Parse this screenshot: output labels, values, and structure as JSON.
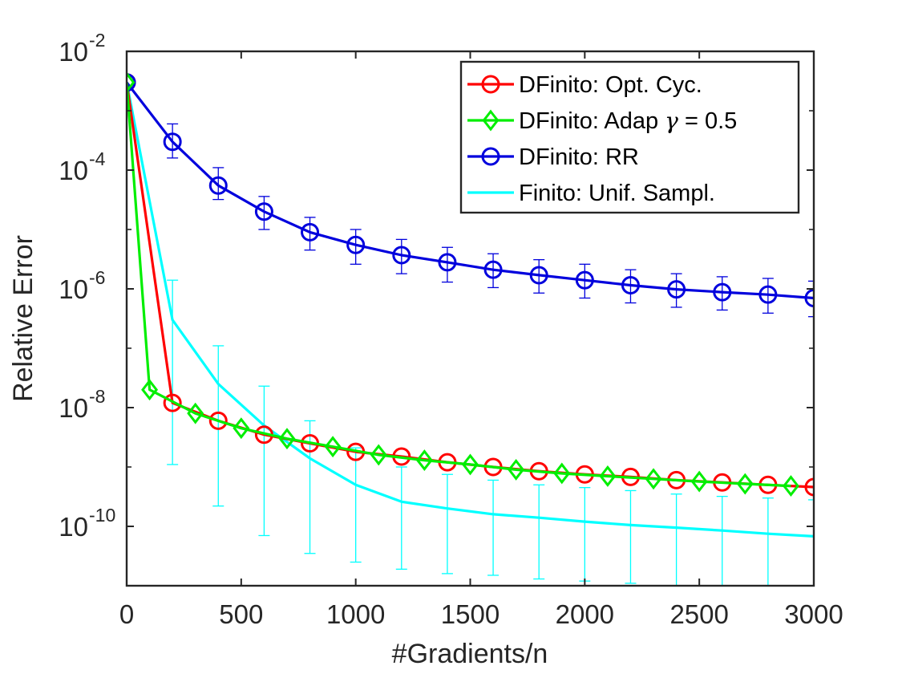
{
  "chart_data": {
    "type": "line",
    "title": "",
    "xlabel": "#Gradients/n",
    "ylabel": "Relative Error",
    "x_scale": "linear",
    "y_scale": "log",
    "xlim": [
      0,
      3000
    ],
    "ylim": [
      1e-11,
      0.01
    ],
    "x_ticks": [
      0,
      500,
      1000,
      1500,
      2000,
      2500,
      3000
    ],
    "x_tick_labels": [
      "0",
      "500",
      "1000",
      "1500",
      "2000",
      "2500",
      "3000"
    ],
    "y_ticks": [
      1e-10,
      1e-08,
      1e-06,
      0.0001,
      0.01
    ],
    "y_tick_labels": [
      {
        "base": "10",
        "exp": "-10"
      },
      {
        "base": "10",
        "exp": "-8"
      },
      {
        "base": "10",
        "exp": "-6"
      },
      {
        "base": "10",
        "exp": "-4"
      },
      {
        "base": "10",
        "exp": "-2"
      }
    ],
    "grid": false,
    "legend_position": "top-right",
    "series": [
      {
        "name": "DFinito: Opt. Cyc.",
        "legend_prefix": "DFinito: Opt. Cyc.",
        "color": "#ff0000",
        "marker": "circle",
        "x": [
          0,
          200,
          400,
          600,
          800,
          1000,
          1200,
          1400,
          1600,
          1800,
          2000,
          2200,
          2400,
          2600,
          2800,
          3000
        ],
        "y": [
          0.003,
          1.2e-08,
          6e-09,
          3.5e-09,
          2.5e-09,
          1.8e-09,
          1.5e-09,
          1.2e-09,
          1e-09,
          8.5e-10,
          7.5e-10,
          6.8e-10,
          6e-10,
          5.5e-10,
          5e-10,
          4.6e-10
        ]
      },
      {
        "name": "DFinito: Adap γ = 0.5",
        "legend_prefix": "DFinito: Adap ",
        "legend_symbol": "γ",
        "legend_suffix": " = 0.5",
        "color": "#00ee00",
        "marker": "diamond",
        "x": [
          0,
          100,
          300,
          500,
          700,
          900,
          1100,
          1300,
          1500,
          1700,
          1900,
          2100,
          2300,
          2500,
          2700,
          2900
        ],
        "y": [
          0.003,
          2e-08,
          8e-09,
          4.5e-09,
          3e-09,
          2.2e-09,
          1.6e-09,
          1.3e-09,
          1.1e-09,
          9e-10,
          7.8e-10,
          7e-10,
          6.3e-10,
          5.7e-10,
          5.2e-10,
          4.8e-10
        ]
      },
      {
        "name": "DFinito: RR",
        "legend_prefix": "DFinito: RR",
        "color": "#0000dd",
        "marker": "circle",
        "x": [
          0,
          200,
          400,
          600,
          800,
          1000,
          1200,
          1400,
          1600,
          1800,
          2000,
          2200,
          2400,
          2600,
          2800,
          3000
        ],
        "y": [
          0.003,
          0.0003,
          5.5e-05,
          2e-05,
          9e-06,
          5.5e-06,
          3.7e-06,
          2.8e-06,
          2.1e-06,
          1.7e-06,
          1.4e-06,
          1.15e-06,
          9.8e-07,
          8.8e-07,
          8e-07,
          7e-07
        ],
        "err_low": [
          null,
          0.00016,
          3.2e-05,
          1e-05,
          4.5e-06,
          2.6e-06,
          1.8e-06,
          1.3e-06,
          1.05e-06,
          8.5e-07,
          7e-07,
          5.8e-07,
          4.9e-07,
          4.4e-07,
          3.9e-07,
          3.4e-07
        ],
        "err_high": [
          null,
          0.0006,
          0.00011,
          3.6e-05,
          1.6e-05,
          1e-05,
          6.8e-06,
          5e-06,
          3.9e-06,
          3.1e-06,
          2.6e-06,
          2.1e-06,
          1.8e-06,
          1.6e-06,
          1.5e-06,
          1.35e-06
        ]
      },
      {
        "name": "Finito: Unif. Sampl.",
        "legend_prefix": "Finito: Unif. Sampl.",
        "color": "#00ffff",
        "marker": "none",
        "x": [
          0,
          200,
          400,
          600,
          800,
          1000,
          1200,
          1400,
          1600,
          1800,
          2000,
          2200,
          2400,
          2600,
          2800,
          3000
        ],
        "y": [
          0.003,
          3e-07,
          2.5e-08,
          5e-09,
          1.4e-09,
          5e-10,
          2.6e-10,
          2e-10,
          1.6e-10,
          1.4e-10,
          1.2e-10,
          1.05e-10,
          9.5e-11,
          8.5e-11,
          7.5e-11,
          6.8e-11
        ],
        "err_low": [
          null,
          1.1e-09,
          2.2e-10,
          7e-11,
          3.5e-11,
          2.5e-11,
          1.9e-11,
          1.6e-11,
          1.5e-11,
          1.3e-11,
          1.2e-11,
          1.1e-11,
          1e-11,
          1e-11,
          1e-11,
          1e-11
        ],
        "err_high": [
          null,
          1.4e-06,
          1.1e-07,
          2.3e-08,
          6e-09,
          2.1e-09,
          1e-09,
          7.5e-10,
          6e-10,
          5e-10,
          4.5e-10,
          4e-10,
          3.5e-10,
          3.2e-10,
          3e-10,
          2.8e-10
        ]
      }
    ]
  }
}
